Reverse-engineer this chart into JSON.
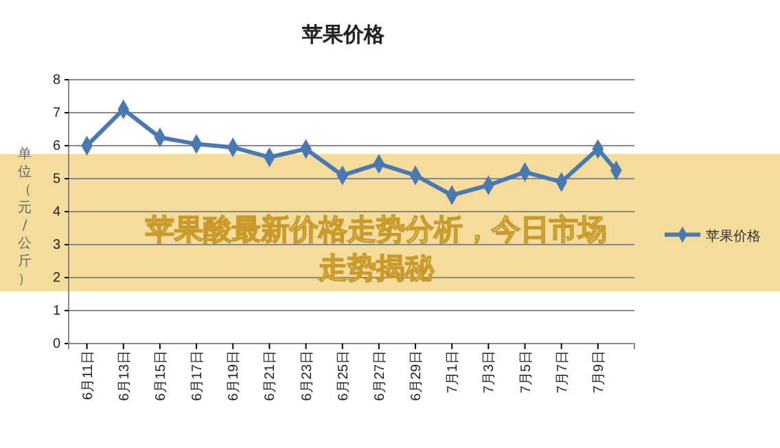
{
  "chart_data": {
    "type": "line",
    "title": "苹果价格",
    "ylabel": "单位（元/公斤）",
    "x": [
      "--06-11",
      "--06-13",
      "--06-15",
      "--06-17",
      "--06-19",
      "--06-21",
      "--06-23",
      "--06-25",
      "--06-27",
      "--06-29",
      "--07-01",
      "--07-03",
      "--07-05",
      "--07-07",
      "--07-09",
      "--07-10"
    ],
    "series": [
      {
        "name": "苹果价格",
        "color": "#4a78b0",
        "values": [
          6.0,
          7.1,
          6.25,
          6.05,
          5.95,
          5.65,
          5.9,
          5.1,
          5.45,
          5.1,
          4.5,
          4.8,
          5.2,
          4.9,
          5.9,
          5.25
        ]
      }
    ],
    "xlim": [
      "--06-10",
      "--07-11"
    ],
    "xticks": [
      {
        "value": "--06-11",
        "label": "6月11日"
      },
      {
        "value": "--06-13",
        "label": "6月13日"
      },
      {
        "value": "--06-15",
        "label": "6月15日"
      },
      {
        "value": "--06-17",
        "label": "6月17日"
      },
      {
        "value": "--06-19",
        "label": "6月19日"
      },
      {
        "value": "--06-21",
        "label": "6月21日"
      },
      {
        "value": "--06-23",
        "label": "6月23日"
      },
      {
        "value": "--06-25",
        "label": "6月25日"
      },
      {
        "value": "--06-27",
        "label": "6月27日"
      },
      {
        "value": "--06-29",
        "label": "6月29日"
      },
      {
        "value": "--07-01",
        "label": "7月1日"
      },
      {
        "value": "--07-03",
        "label": "7月3日"
      },
      {
        "value": "--07-05",
        "label": "7月5日"
      },
      {
        "value": "--07-07",
        "label": "7月7日"
      },
      {
        "value": "--07-09",
        "label": "7月9日"
      }
    ],
    "ylim": [
      0,
      8
    ],
    "yticks": [
      0,
      1,
      2,
      3,
      4,
      5,
      6,
      7,
      8
    ],
    "grid": "y",
    "legend": "right",
    "marker": "diamond",
    "line_style": "solid",
    "annotations": [
      "苹果酸最新价格走势分析，今日市场走势揭秘"
    ]
  }
}
